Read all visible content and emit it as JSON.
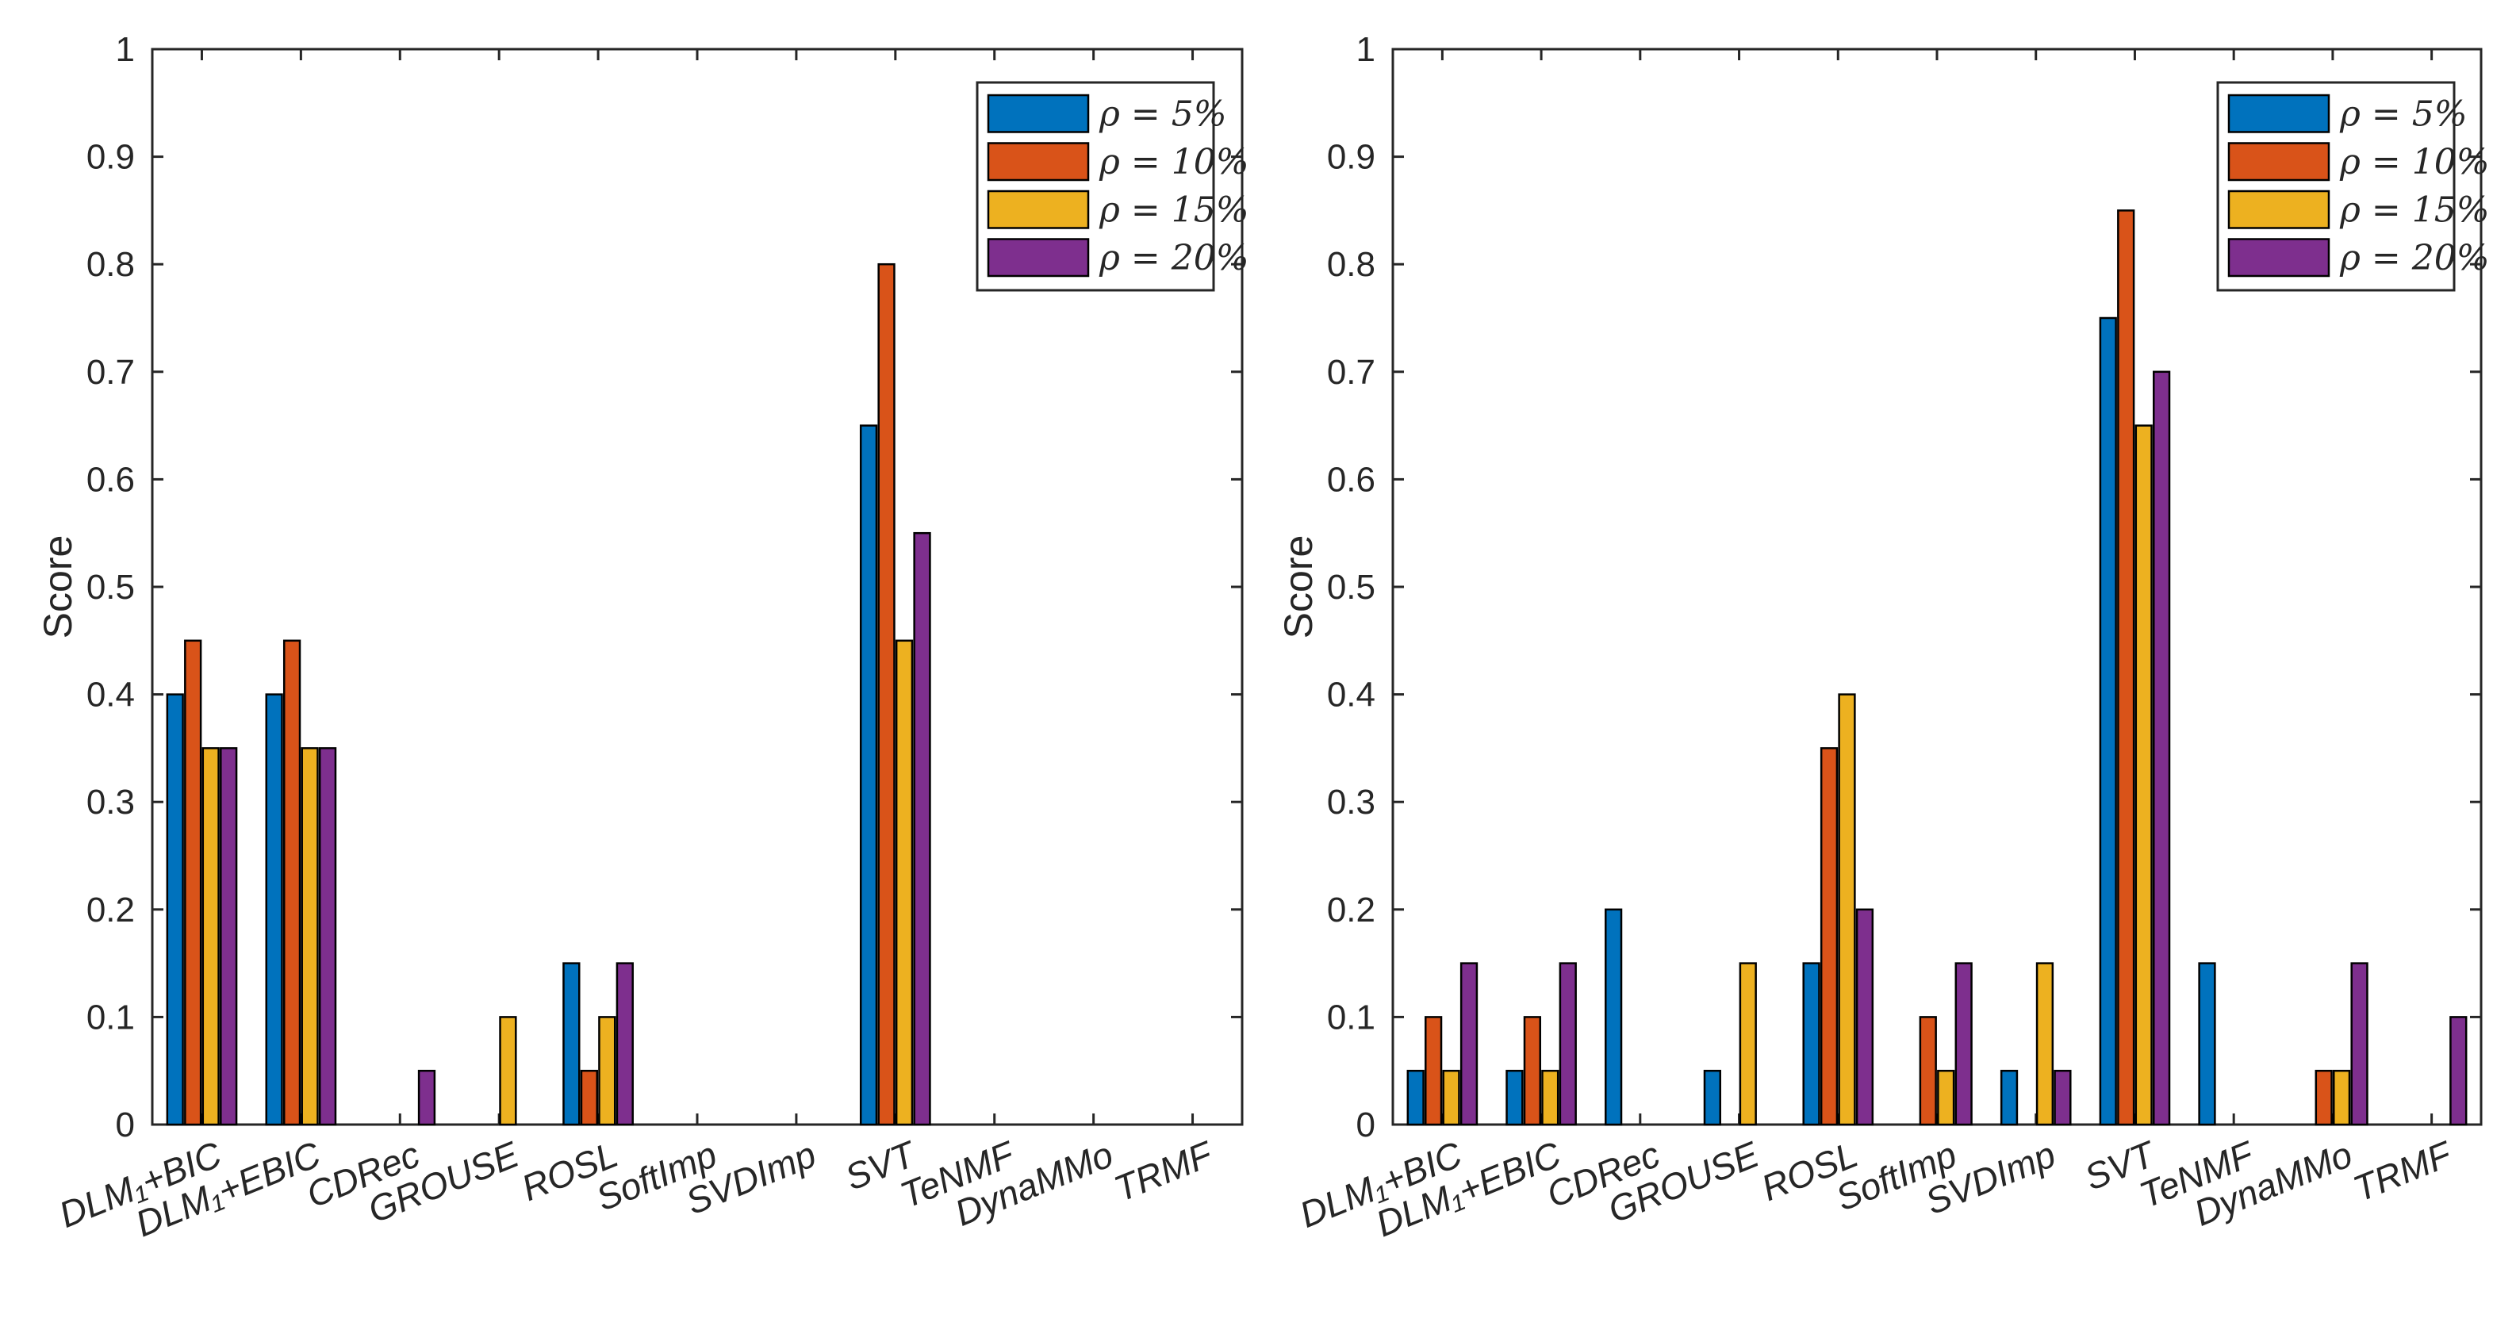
{
  "chart_data": [
    {
      "type": "bar",
      "title": "",
      "xlabel": "",
      "ylabel": "Score",
      "ylim": [
        0,
        1
      ],
      "yticks": [
        0,
        0.1,
        0.2,
        0.3,
        0.4,
        0.5,
        0.6,
        0.7,
        0.8,
        0.9,
        1
      ],
      "ytick_labels": [
        "0",
        "0.1",
        "0.2",
        "0.3",
        "0.4",
        "0.5",
        "0.6",
        "0.7",
        "0.8",
        "0.9",
        "1"
      ],
      "categories": [
        "DLM₁+BIC",
        "DLM₁+EBIC",
        "CDRec",
        "GROUSE",
        "ROSL",
        "SoftImp",
        "SVDImp",
        "SVT",
        "TeNMF",
        "DynaMMo",
        "TRMF"
      ],
      "legend_location": "top-right",
      "series": [
        {
          "name": "ρ = 5%",
          "color": "#0072BD",
          "values": [
            0.4,
            0.4,
            0,
            0,
            0.15,
            0,
            0,
            0.65,
            0,
            0,
            0
          ]
        },
        {
          "name": "ρ = 10%",
          "color": "#D95319",
          "values": [
            0.45,
            0.45,
            0,
            0,
            0.05,
            0,
            0,
            0.8,
            0,
            0,
            0
          ]
        },
        {
          "name": "ρ = 15%",
          "color": "#EDB120",
          "values": [
            0.35,
            0.35,
            0,
            0.1,
            0.1,
            0,
            0,
            0.45,
            0,
            0,
            0
          ]
        },
        {
          "name": "ρ = 20%",
          "color": "#7E2F8E",
          "values": [
            0.35,
            0.35,
            0.05,
            0,
            0.15,
            0,
            0,
            0.55,
            0,
            0,
            0
          ]
        }
      ]
    },
    {
      "type": "bar",
      "title": "",
      "xlabel": "",
      "ylabel": "Score",
      "ylim": [
        0,
        1
      ],
      "yticks": [
        0,
        0.1,
        0.2,
        0.3,
        0.4,
        0.5,
        0.6,
        0.7,
        0.8,
        0.9,
        1
      ],
      "ytick_labels": [
        "0",
        "0.1",
        "0.2",
        "0.3",
        "0.4",
        "0.5",
        "0.6",
        "0.7",
        "0.8",
        "0.9",
        "1"
      ],
      "categories": [
        "DLM₁+BIC",
        "DLM₁+EBIC",
        "CDRec",
        "GROUSE",
        "ROSL",
        "SoftImp",
        "SVDImp",
        "SVT",
        "TeNMF",
        "DynaMMo",
        "TRMF"
      ],
      "legend_location": "top-right",
      "series": [
        {
          "name": "ρ = 5%",
          "color": "#0072BD",
          "values": [
            0.05,
            0.05,
            0.2,
            0.05,
            0.15,
            0,
            0.05,
            0.75,
            0.15,
            0,
            0
          ]
        },
        {
          "name": "ρ = 10%",
          "color": "#D95319",
          "values": [
            0.1,
            0.1,
            0,
            0,
            0.35,
            0.1,
            0,
            0.85,
            0,
            0.05,
            0
          ]
        },
        {
          "name": "ρ = 15%",
          "color": "#EDB120",
          "values": [
            0.05,
            0.05,
            0,
            0.15,
            0.4,
            0.05,
            0.15,
            0.65,
            0,
            0.05,
            0
          ]
        },
        {
          "name": "ρ = 20%",
          "color": "#7E2F8E",
          "values": [
            0.15,
            0.15,
            0,
            0,
            0.2,
            0.15,
            0.05,
            0.7,
            0,
            0.15,
            0.1
          ]
        }
      ]
    }
  ]
}
